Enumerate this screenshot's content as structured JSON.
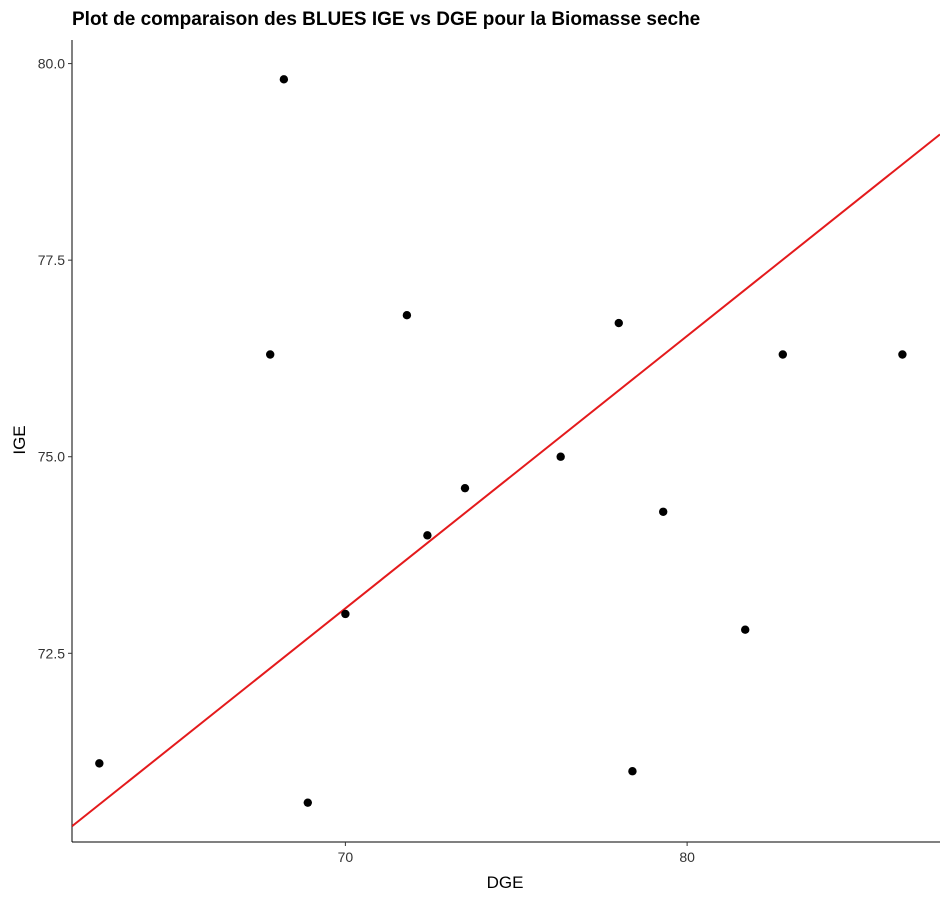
{
  "chart_data": {
    "type": "scatter",
    "title": "Plot de comparaison des BLUES IGE vs DGE pour la Biomasse seche",
    "xlabel": "DGE",
    "ylabel": "IGE",
    "xlim": [
      62.0,
      87.4
    ],
    "ylim": [
      70.1,
      80.3
    ],
    "x_ticks": [
      70,
      80
    ],
    "x_tick_labels": [
      "70",
      "80"
    ],
    "y_ticks": [
      72.5,
      75.0,
      77.5,
      80.0
    ],
    "y_tick_labels": [
      "72.5",
      "75.0",
      "77.5",
      "80.0"
    ],
    "grid": false,
    "legend": "none",
    "points": [
      {
        "x": 62.8,
        "y": 71.1
      },
      {
        "x": 67.8,
        "y": 76.3
      },
      {
        "x": 68.2,
        "y": 79.8
      },
      {
        "x": 68.9,
        "y": 70.6
      },
      {
        "x": 70.0,
        "y": 73.0
      },
      {
        "x": 71.8,
        "y": 76.8
      },
      {
        "x": 72.4,
        "y": 74.0
      },
      {
        "x": 73.5,
        "y": 74.6
      },
      {
        "x": 76.3,
        "y": 75.0
      },
      {
        "x": 78.0,
        "y": 76.7
      },
      {
        "x": 78.4,
        "y": 71.0
      },
      {
        "x": 79.3,
        "y": 74.3
      },
      {
        "x": 81.7,
        "y": 72.8
      },
      {
        "x": 82.8,
        "y": 76.3
      },
      {
        "x": 86.3,
        "y": 76.3
      }
    ],
    "fit_line": {
      "x": [
        62.0,
        87.4
      ],
      "y": [
        70.3,
        79.1
      ]
    },
    "colors": {
      "points": "#000000",
      "fit_line": "#e41a1c",
      "axes": "#000000"
    }
  }
}
